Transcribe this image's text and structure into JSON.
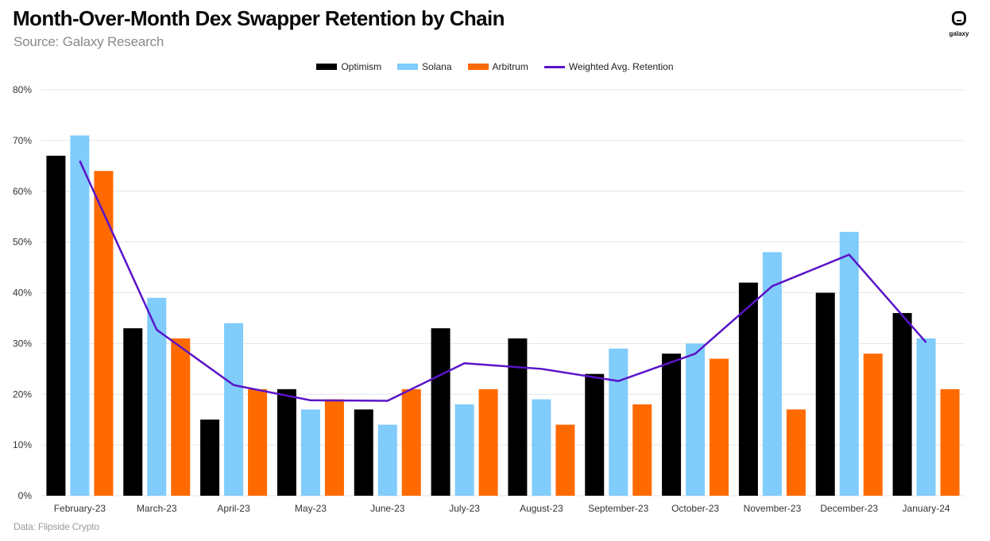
{
  "header": {
    "title": "Month-Over-Month Dex Swapper Retention by Chain",
    "subtitle": "Source: Galaxy Research",
    "logo_text": "galaxy"
  },
  "footer": {
    "note": "Data: Flipside Crypto"
  },
  "chart_data": {
    "type": "bar",
    "title": "Month-Over-Month Dex Swapper Retention by Chain",
    "xlabel": "",
    "ylabel": "",
    "ylim": [
      0,
      80
    ],
    "yticks": [
      "0%",
      "10%",
      "20%",
      "30%",
      "40%",
      "50%",
      "60%",
      "70%",
      "80%"
    ],
    "grid": true,
    "legend": "top-center",
    "categories": [
      "February-23",
      "March-23",
      "April-23",
      "May-23",
      "June-23",
      "July-23",
      "August-23",
      "September-23",
      "October-23",
      "November-23",
      "December-23",
      "January-24"
    ],
    "series": [
      {
        "name": "Optimism",
        "type": "bar",
        "color": "#000000",
        "values": [
          67,
          33,
          15,
          21,
          17,
          33,
          31,
          24,
          28,
          42,
          40,
          36
        ]
      },
      {
        "name": "Solana",
        "type": "bar",
        "color": "#80ccfb",
        "values": [
          71,
          39,
          34,
          17,
          14,
          18,
          19,
          29,
          30,
          48,
          52,
          31
        ]
      },
      {
        "name": "Arbitrum",
        "type": "bar",
        "color": "#ff6a00",
        "values": [
          64,
          31,
          21,
          19,
          21,
          21,
          14,
          18,
          27,
          17,
          28,
          21
        ]
      },
      {
        "name": "Weighted Avg. Retention",
        "type": "line",
        "color": "#5a14c8",
        "values": [
          66,
          32.7,
          21.8,
          18.8,
          18.7,
          26.1,
          25,
          22.6,
          28,
          41.3,
          47.5,
          30.2
        ]
      }
    ]
  }
}
